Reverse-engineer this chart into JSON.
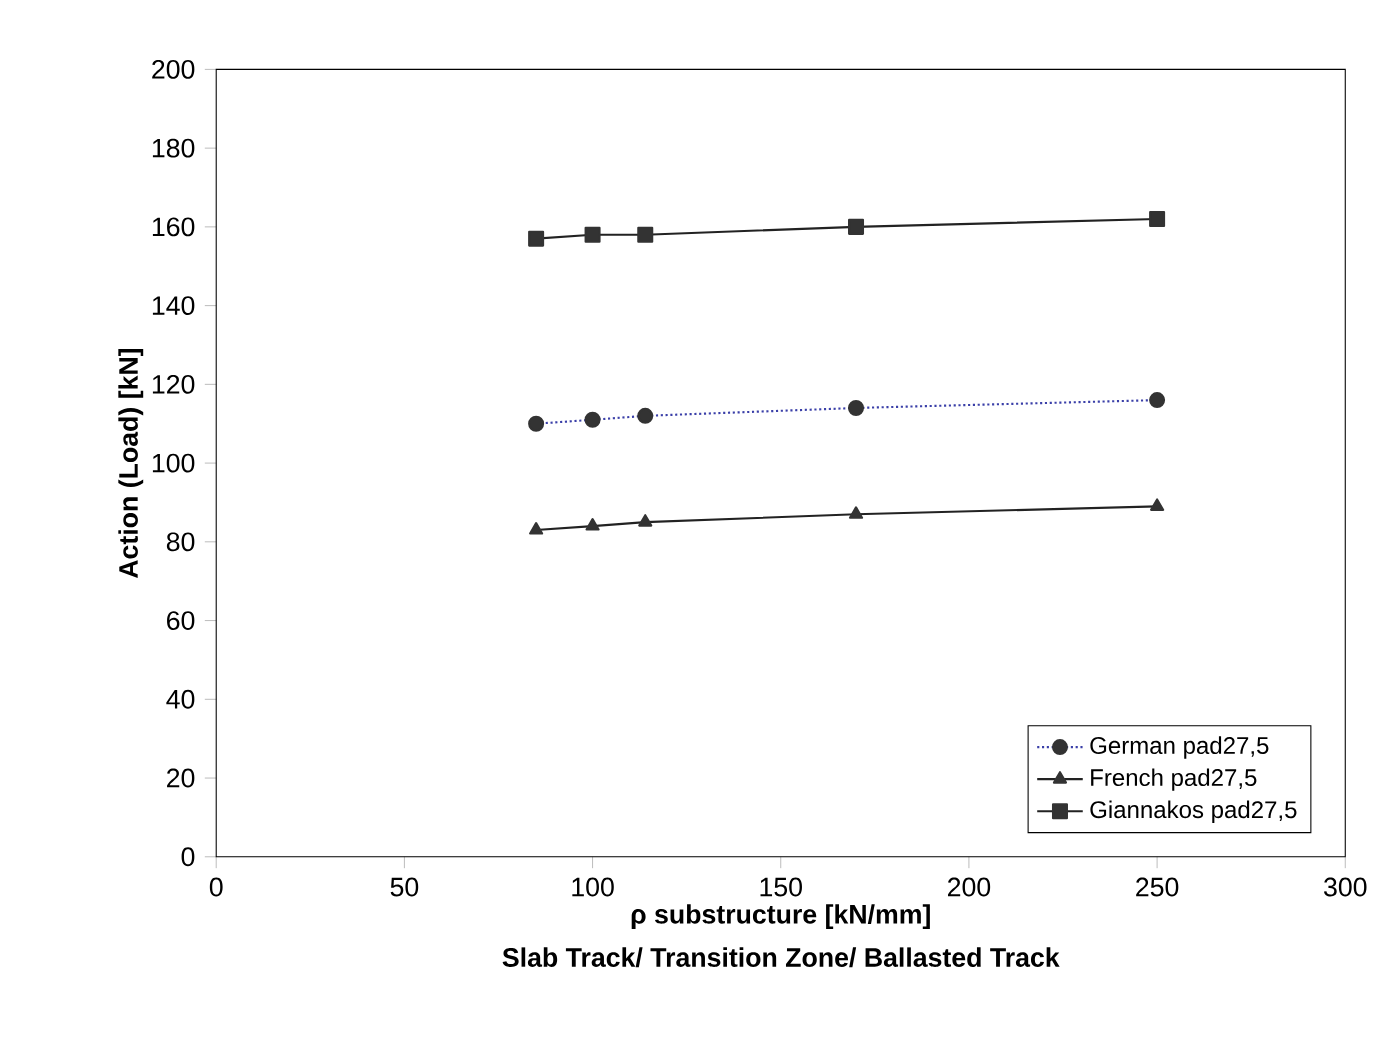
{
  "chart_data": {
    "type": "line",
    "xlabel": "ρ substructure  [kN/mm]",
    "ylabel": "Action (Load)  [kN]",
    "annotations": [
      "Slab Track/ Transition Zone/ Ballasted Track"
    ],
    "x": [
      85,
      100,
      114,
      170,
      250
    ],
    "series": [
      {
        "name": "German pad27,5",
        "color": "#3a3fa8",
        "values": [
          110,
          111,
          112,
          114,
          116
        ],
        "marker": "circle",
        "line_style": "dotted"
      },
      {
        "name": "French pad27,5",
        "color": "#222222",
        "values": [
          83,
          84,
          85,
          87,
          89
        ],
        "marker": "triangle",
        "line_style": "solid"
      },
      {
        "name": "Giannakos pad27,5",
        "color": "#222222",
        "values": [
          157,
          158,
          158,
          160,
          162
        ],
        "marker": "square",
        "line_style": "solid"
      }
    ],
    "xlim": [
      0,
      300
    ],
    "xticks": [
      0,
      50,
      100,
      150,
      200,
      250,
      300
    ],
    "ylim": [
      0,
      200
    ],
    "yticks": [
      0,
      20,
      40,
      60,
      80,
      100,
      120,
      140,
      160,
      180,
      200
    ],
    "grid": false,
    "legend": "bottom right"
  }
}
